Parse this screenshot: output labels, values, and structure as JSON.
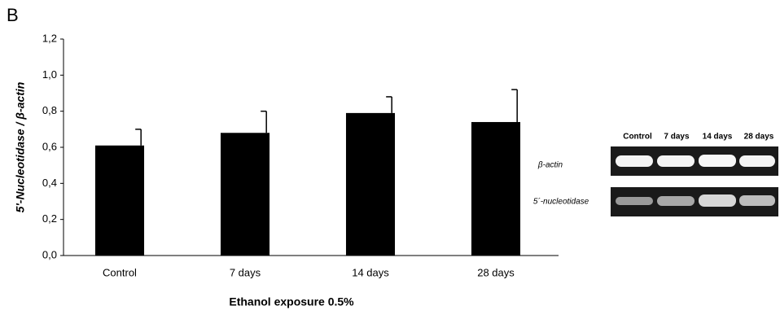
{
  "panel_label": "B",
  "chart_data": {
    "type": "bar",
    "ylabel": "5'-Nucleotidase / β-actin",
    "xlabel": "Ethanol exposure 0.5%",
    "categories": [
      "Control",
      "7 days",
      "14 days",
      "28 days"
    ],
    "values": [
      0.61,
      0.68,
      0.79,
      0.74
    ],
    "errors": [
      0.09,
      0.12,
      0.09,
      0.18
    ],
    "color": "#000000",
    "ylim": [
      0,
      1.2
    ],
    "yticks": [
      {
        "value": 0,
        "label": "0,0"
      },
      {
        "value": 0.2,
        "label": "0,2"
      },
      {
        "value": 0.4,
        "label": "0,4"
      },
      {
        "value": 0.6,
        "label": "0,6"
      },
      {
        "value": 0.8,
        "label": "0,8"
      },
      {
        "value": 1.0,
        "label": "1,0"
      },
      {
        "value": 1.2,
        "label": "1,2"
      }
    ],
    "grid": false
  },
  "gel": {
    "lanes": [
      "Control",
      "7 days",
      "14 days",
      "28 days"
    ],
    "rows": [
      "β-actin",
      "5´-nucleotidase"
    ]
  }
}
